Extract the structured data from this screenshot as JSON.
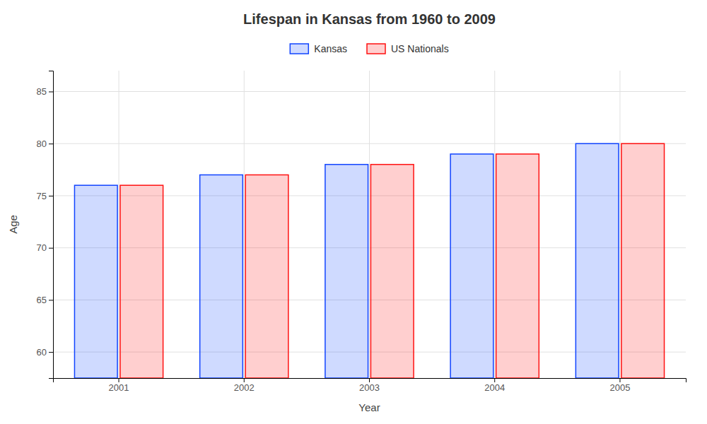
{
  "chart_data": {
    "type": "bar",
    "title": "Lifespan in Kansas from 1960 to 2009",
    "x_label": "Year",
    "y_label": "Age",
    "categories": [
      "2001",
      "2002",
      "2003",
      "2004",
      "2005"
    ],
    "series": [
      {
        "name": "Kansas",
        "color": "#1144ff",
        "values": [
          76,
          77,
          78,
          79,
          80
        ]
      },
      {
        "name": "US Nationals",
        "color": "#ff1111",
        "values": [
          76,
          77,
          78,
          79,
          80
        ]
      }
    ],
    "ylim": [
      57.5,
      87
    ],
    "yticks": [
      60,
      65,
      70,
      75,
      80,
      85
    ],
    "grid": true,
    "legend": "top"
  }
}
